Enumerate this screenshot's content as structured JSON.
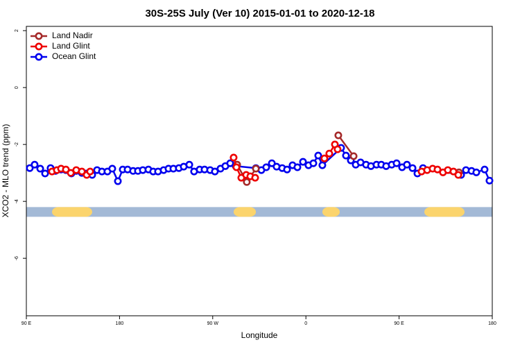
{
  "chart_data": {
    "type": "line",
    "title": "30S-25S July (Ver 10)   2015-01-01 to 2020-12-18",
    "xlabel": "Longitude",
    "ylabel": "XCO2 - MLO trend (ppm)",
    "xlim": [
      90,
      540
    ],
    "ylim": [
      -8.02,
      2.15
    ],
    "xticks": [
      {
        "value": 90,
        "label": "90 E"
      },
      180,
      {
        "value": 270,
        "label": "90 W"
      },
      {
        "value": 360,
        "label": "0"
      },
      {
        "value": 450,
        "label": "90 E"
      },
      {
        "value": 540,
        "label": "180"
      }
    ],
    "yticks": [
      2,
      0,
      -2,
      -4,
      -6
    ],
    "legend": "top-left",
    "land_mask": {
      "y": -4.37,
      "ocean_color": "#a3b9d6",
      "land_color": "#fbd46d",
      "land": [
        [
          114.8,
          153.6
        ],
        [
          290.2,
          311.7
        ],
        [
          375.9,
          392.7
        ],
        [
          474.4,
          513.2
        ]
      ]
    },
    "series": [
      {
        "name": "Land Nadir",
        "color": "#a52a2a",
        "x": [
          293.6,
          302.9,
          311.7,
          null,
          391.3,
          406.1,
          null,
          507.8
        ],
        "values": [
          -2.71,
          -3.32,
          -2.85,
          null,
          -1.68,
          -2.41,
          null,
          -2.98
        ]
      },
      {
        "name": "Land Glint",
        "color": "#ee0000",
        "x": [
          114.8,
          119.5,
          123.5,
          128.2,
          132.9,
          138.2,
          143.6,
          148.3,
          151.6,
          null,
          290.2,
          292.9,
          297.6,
          302.3,
          306.3,
          311.0,
          null,
          377.9,
          382.6,
          388.0,
          390.6,
          null,
          471.7,
          477.1,
          482.4,
          487.1,
          492.4,
          497.1,
          502.5,
          507.2
        ],
        "values": [
          -2.95,
          -2.9,
          -2.85,
          -2.88,
          -3.0,
          -2.9,
          -2.95,
          -3.07,
          -2.95,
          null,
          -2.46,
          -2.8,
          -3.17,
          -3.07,
          -3.12,
          -3.17,
          null,
          -2.49,
          -2.32,
          -2.0,
          -2.17,
          null,
          -2.95,
          -2.9,
          -2.85,
          -2.88,
          -2.98,
          -2.9,
          -2.95,
          -3.07
        ]
      },
      {
        "name": "Ocean Glint",
        "color": "#0000ee",
        "x": [
          93.3,
          98.0,
          103.4,
          108.1,
          113.4,
          118.1,
          123.5,
          128.2,
          133.5,
          138.2,
          143.6,
          148.3,
          153.6,
          158.3,
          163.0,
          168.3,
          173.0,
          178.4,
          183.1,
          187.8,
          193.1,
          197.8,
          202.5,
          207.9,
          212.5,
          217.2,
          222.6,
          227.3,
          232.0,
          237.3,
          242.0,
          247.4,
          252.0,
          257.4,
          262.1,
          267.5,
          272.1,
          277.5,
          282.2,
          286.9,
          292.2,
          311.7,
          317.0,
          321.7,
          327.1,
          331.7,
          337.1,
          341.8,
          347.1,
          351.8,
          357.2,
          362.5,
          367.2,
          371.9,
          375.9,
          394.0,
          398.7,
          403.4,
          408.1,
          412.8,
          418.1,
          422.8,
          428.2,
          432.8,
          437.5,
          442.9,
          447.6,
          452.9,
          457.6,
          463.0,
          467.7,
          473.1,
          509.9,
          514.6,
          520.0,
          524.6,
          532.6,
          537.3
        ],
        "values": [
          -2.83,
          -2.71,
          -2.85,
          -3.02,
          -2.83,
          -2.93,
          -2.88,
          -2.9,
          -3.02,
          -2.93,
          -3.0,
          -3.02,
          -3.07,
          -2.9,
          -2.95,
          -2.95,
          -2.85,
          -3.29,
          -2.88,
          -2.88,
          -2.93,
          -2.93,
          -2.9,
          -2.88,
          -2.95,
          -2.95,
          -2.9,
          -2.85,
          -2.85,
          -2.83,
          -2.78,
          -2.71,
          -2.95,
          -2.88,
          -2.88,
          -2.9,
          -2.95,
          -2.85,
          -2.76,
          -2.66,
          -2.76,
          -2.83,
          -2.9,
          -2.8,
          -2.66,
          -2.78,
          -2.83,
          -2.88,
          -2.73,
          -2.8,
          -2.61,
          -2.73,
          -2.66,
          -2.39,
          -2.73,
          -2.12,
          -2.39,
          -2.56,
          -2.71,
          -2.63,
          -2.71,
          -2.76,
          -2.71,
          -2.71,
          -2.76,
          -2.71,
          -2.66,
          -2.8,
          -2.71,
          -2.83,
          -3.02,
          -2.83,
          -3.07,
          -2.9,
          -2.93,
          -2.98,
          -2.88,
          -3.27
        ]
      }
    ]
  }
}
